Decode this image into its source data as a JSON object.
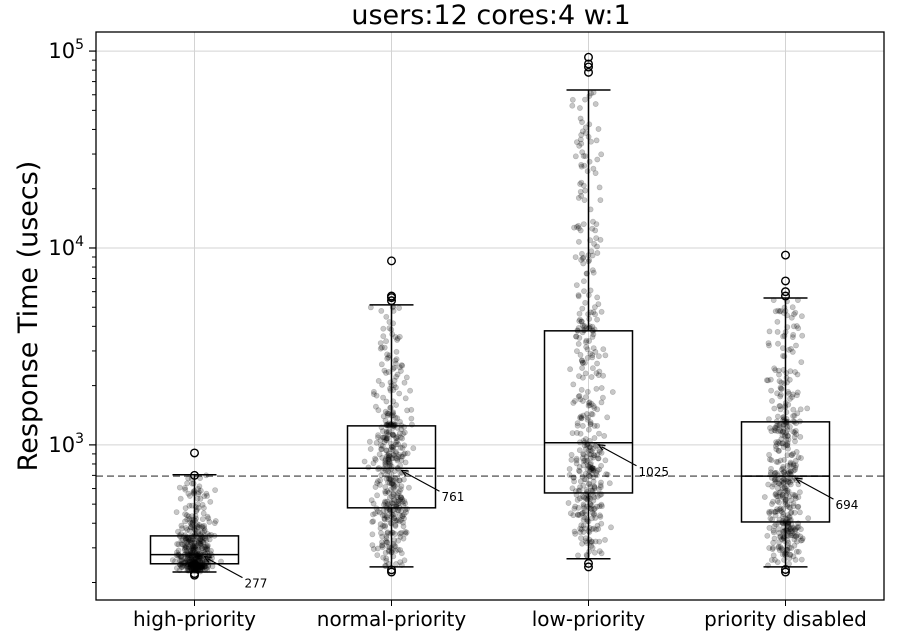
{
  "chart_data": {
    "type": "boxplot",
    "title": "users:12  cores:4  w:1",
    "xlabel": "",
    "ylabel": "Response Time (usecs)",
    "yscale": "log",
    "ylim": [
      163,
      125000
    ],
    "grid": true,
    "y_ticks": [
      {
        "value": 1000,
        "base": "10",
        "exp": "3"
      },
      {
        "value": 10000,
        "base": "10",
        "exp": "4"
      },
      {
        "value": 100000,
        "base": "10",
        "exp": "5"
      }
    ],
    "reference_line": {
      "value": 694,
      "style": "dashed",
      "color": "#808080"
    },
    "categories": [
      "high-priority",
      "normal-priority",
      "low-priority",
      "priority disabled"
    ],
    "boxes": [
      {
        "name": "high-priority",
        "median": 277,
        "q1": 249,
        "q3": 345,
        "whisker_low": 226,
        "whisker_high": 705,
        "outliers": [
          700,
          910,
          222,
          218
        ],
        "median_label": "277",
        "points": 420
      },
      {
        "name": "normal-priority",
        "median": 761,
        "q1": 479,
        "q3": 1249,
        "whisker_low": 240,
        "whisker_high": 5140,
        "outliers": [
          5400,
          5600,
          5700,
          8600,
          232,
          226
        ],
        "median_label": "761",
        "points": 420
      },
      {
        "name": "low-priority",
        "median": 1025,
        "q1": 570,
        "q3": 3795,
        "whisker_low": 264,
        "whisker_high": 63400,
        "outliers": [
          78000,
          83000,
          86000,
          93000,
          250,
          240
        ],
        "median_label": "1025",
        "points": 420
      },
      {
        "name": "priority disabled",
        "median": 694,
        "q1": 406,
        "q3": 1309,
        "whisker_low": 240,
        "whisker_high": 5570,
        "outliers": [
          5700,
          6000,
          6800,
          9200,
          233,
          226
        ],
        "median_label": "694",
        "points": 420
      }
    ],
    "colors": {
      "points": "#000000",
      "point_alpha": 0.25,
      "box": "#000000",
      "grid": "#d3d3d3"
    }
  }
}
